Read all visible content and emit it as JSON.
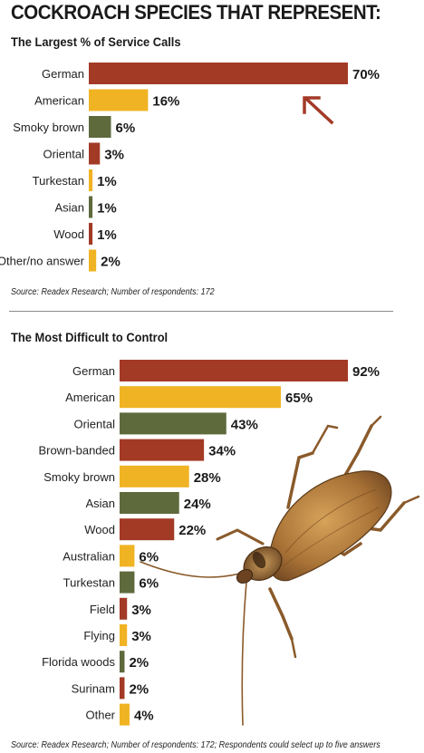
{
  "header": {
    "title": "COCKROACH SPECIES THAT REPRESENT:"
  },
  "colors": {
    "red": "#a33a26",
    "yellow": "#f0b323",
    "olive": "#5e6a3c"
  },
  "icons": {
    "arrow": "up-left-arrow-icon",
    "roach": "cockroach-illustration"
  },
  "chart_data": [
    {
      "type": "bar",
      "orientation": "horizontal",
      "title": "The Largest % of Service Calls",
      "categories": [
        "German",
        "American",
        "Smoky brown",
        "Oriental",
        "Turkestan",
        "Asian",
        "Wood",
        "Other/no answer"
      ],
      "values": [
        70,
        16,
        6,
        3,
        1,
        1,
        1,
        2
      ],
      "value_labels": [
        "70%",
        "16%",
        "6%",
        "3%",
        "1%",
        "1%",
        "1%",
        "2%"
      ],
      "colors": [
        "red",
        "yellow",
        "olive",
        "red",
        "yellow",
        "olive",
        "red",
        "yellow"
      ],
      "xlim": [
        0,
        70
      ],
      "source": "Source: Readex Research; Number of respondents: 172"
    },
    {
      "type": "bar",
      "orientation": "horizontal",
      "title": "The Most Difficult to Control",
      "categories": [
        "German",
        "American",
        "Oriental",
        "Brown-banded",
        "Smoky brown",
        "Asian",
        "Wood",
        "Australian",
        "Turkestan",
        "Field",
        "Flying",
        "Florida woods",
        "Surinam",
        "Other"
      ],
      "values": [
        92,
        65,
        43,
        34,
        28,
        24,
        22,
        6,
        6,
        3,
        3,
        2,
        2,
        4
      ],
      "value_labels": [
        "92%",
        "65%",
        "43%",
        "34%",
        "28%",
        "24%",
        "22%",
        "6%",
        "6%",
        "3%",
        "3%",
        "2%",
        "2%",
        "4%"
      ],
      "colors": [
        "red",
        "yellow",
        "olive",
        "red",
        "yellow",
        "olive",
        "red",
        "yellow",
        "olive",
        "red",
        "yellow",
        "olive",
        "red",
        "yellow"
      ],
      "xlim": [
        0,
        92
      ],
      "source": "Source: Readex Research; Number of respondents: 172; Respondents could select up to five answers"
    }
  ]
}
